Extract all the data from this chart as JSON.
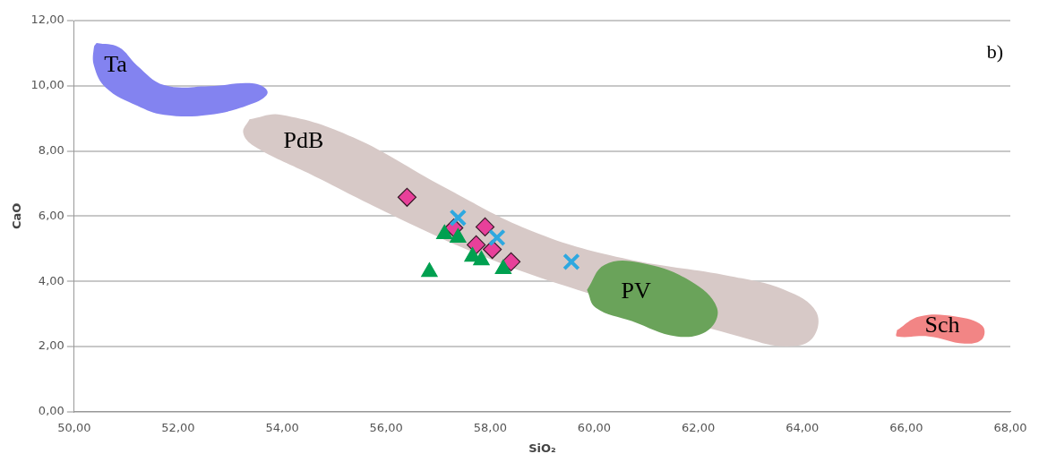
{
  "chart_data": {
    "type": "scatter",
    "xlabel": "SiO₂",
    "ylabel": "CaO",
    "xlim": [
      50,
      68
    ],
    "ylim": [
      0,
      12
    ],
    "xticks": [
      {
        "value": 50,
        "label": "50,00"
      },
      {
        "value": 52,
        "label": "52,00"
      },
      {
        "value": 54,
        "label": "54,00"
      },
      {
        "value": 56,
        "label": "56,00"
      },
      {
        "value": 58,
        "label": "58,00"
      },
      {
        "value": 60,
        "label": "60,00"
      },
      {
        "value": 62,
        "label": "62,00"
      },
      {
        "value": 64,
        "label": "64,00"
      },
      {
        "value": 66,
        "label": "66,00"
      },
      {
        "value": 68,
        "label": "68,00"
      }
    ],
    "yticks": [
      {
        "value": 0,
        "label": "0,00"
      },
      {
        "value": 2,
        "label": "2,00"
      },
      {
        "value": 4,
        "label": "4,00"
      },
      {
        "value": 6,
        "label": "6,00"
      },
      {
        "value": 8,
        "label": "8,00"
      },
      {
        "value": 10,
        "label": "10,00"
      },
      {
        "value": 12,
        "label": "12,00"
      }
    ],
    "grid": "y",
    "legend": false,
    "series": [
      {
        "type": "area",
        "name": "Ta",
        "color": "#8383f0",
        "x": [
          50.43,
          50.86,
          51.21,
          51.73,
          52.59,
          53.46,
          53.72,
          53.46,
          52.59,
          51.73,
          51.21,
          50.61,
          50.38,
          50.38
        ],
        "values": [
          11.31,
          11.18,
          10.62,
          10.02,
          9.99,
          10.07,
          9.8,
          9.47,
          9.11,
          9.11,
          9.39,
          9.94,
          10.62,
          11.18
        ]
      },
      {
        "type": "area",
        "name": "PdB",
        "color": "#d7c9c7",
        "x": [
          53.37,
          53.98,
          55.36,
          57.09,
          58.82,
          60.55,
          62.62,
          63.66,
          64.27,
          64.18,
          63.66,
          62.97,
          59.68,
          57.95,
          56.22,
          54.5,
          53.46,
          53.25
        ],
        "values": [
          8.97,
          9.11,
          8.42,
          6.91,
          5.53,
          4.71,
          4.16,
          3.74,
          3.06,
          2.23,
          2.01,
          2.23,
          3.74,
          4.71,
          5.95,
          7.32,
          8.15,
          8.56
        ]
      },
      {
        "type": "area",
        "name": "PV",
        "color": "#6aa35a",
        "x": [
          59.86,
          60.2,
          60.89,
          61.84,
          62.36,
          62.19,
          61.59,
          60.72,
          60.03
        ],
        "values": [
          3.74,
          4.51,
          4.57,
          4.02,
          3.19,
          2.5,
          2.31,
          2.78,
          3.19
        ]
      },
      {
        "type": "area",
        "name": "Sch",
        "color": "#f28585",
        "x": [
          65.82,
          66.25,
          66.95,
          67.46,
          67.46,
          67.12,
          66.43,
          65.82
        ],
        "values": [
          2.5,
          2.92,
          2.92,
          2.64,
          2.23,
          2.09,
          2.31,
          2.31
        ]
      },
      {
        "type": "scatter",
        "marker": "triangle",
        "color": "#00a050",
        "x": [
          56.83,
          57.12,
          57.38,
          57.66,
          57.83,
          58.25
        ],
        "values": [
          4.29,
          5.45,
          5.34,
          4.76,
          4.65,
          4.38
        ]
      },
      {
        "type": "scatter",
        "marker": "cross",
        "color": "#2ea8e0",
        "x": [
          57.38,
          58.13,
          59.56
        ],
        "values": [
          5.95,
          5.34,
          4.6
        ]
      },
      {
        "type": "scatter",
        "marker": "diamond",
        "color": "#e8409a",
        "x": [
          56.4,
          57.3,
          57.9,
          57.73,
          58.04,
          58.4
        ],
        "values": [
          6.58,
          5.64,
          5.67,
          5.12,
          4.98,
          4.6
        ]
      }
    ],
    "annotations": [
      "b)"
    ]
  }
}
